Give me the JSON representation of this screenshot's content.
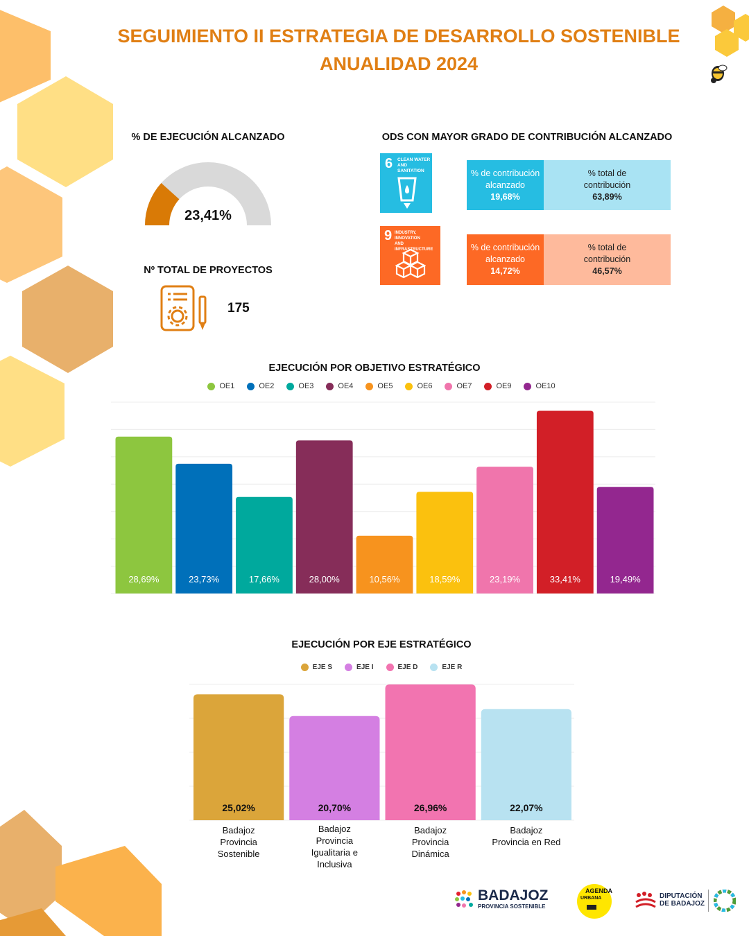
{
  "header": {
    "title_line1": "SEGUIMIENTO  II ESTRATEGIA DE DESARROLLO SOSTENIBLE",
    "title_line2": "ANUALIDAD 2024"
  },
  "execution": {
    "heading": "% DE EJECUCIÓN ALCANZADO",
    "value_label": "23,41%",
    "value": 23.41,
    "fill_color": "#D97A06",
    "track_color": "#D9D9D9"
  },
  "projects": {
    "heading": "Nº TOTAL DE PROYECTOS",
    "total": "175",
    "icon": "document-gear-icon"
  },
  "ods": {
    "heading": "ODS CON MAYOR GRADO DE CONTRIBUCIÓN ALCANZADO",
    "goals": [
      {
        "number": "6",
        "name_line1": "CLEAN WATER",
        "name_line2": "AND SANITATION",
        "icon": "water-glass-icon",
        "color": "#26BDE2",
        "light_color": "#A9E3F3",
        "achieved_label": "% de contribución alcanzado",
        "achieved_value": "19,68%",
        "total_label": "% total de contribución",
        "total_value": "63,89%"
      },
      {
        "number": "9",
        "name_line1": "INDUSTRY, INNOVATION",
        "name_line2": "AND INFRASTRUCTURE",
        "icon": "cubes-icon",
        "color": "#FD6925",
        "light_color": "#FEBA9C",
        "achieved_label": "% de contribución alcanzado",
        "achieved_value": "14,72%",
        "total_label": "% total de contribución",
        "total_value": "46,57%"
      }
    ]
  },
  "chart_data": [
    {
      "type": "bar",
      "title": "EJECUCIÓN POR OBJETIVO ESTRATÉGICO",
      "categories": [
        "OE1",
        "OE2",
        "OE3",
        "OE4",
        "OE5",
        "OE6",
        "OE7",
        "OE9",
        "OE10"
      ],
      "values": [
        28.69,
        23.73,
        17.66,
        28.0,
        10.56,
        18.59,
        23.19,
        33.41,
        19.49
      ],
      "value_labels": [
        "28,69%",
        "23,73%",
        "17,66%",
        "28,00%",
        "10,56%",
        "18,59%",
        "23,19%",
        "33,41%",
        "19,49%"
      ],
      "colors": [
        "#8DC63F",
        "#0070BA",
        "#00A99D",
        "#862D59",
        "#F7931E",
        "#FBC10E",
        "#F075AC",
        "#D21F27",
        "#93278F"
      ],
      "ylim": [
        0,
        35
      ],
      "grid": true,
      "legend_position": "top"
    },
    {
      "type": "bar",
      "title": "EJECUCIÓN POR EJE ESTRATÉGICO",
      "categories": [
        "EJE S",
        "EJE I",
        "EJE D",
        "EJE R"
      ],
      "category_names": [
        "Badajoz Provincia Sostenible",
        "Badajoz Provincia Igualitaria e Inclusiva",
        "Badajoz Provincia Dinámica",
        "Badajoz Provincia en Red"
      ],
      "values": [
        25.02,
        20.7,
        26.96,
        22.07
      ],
      "value_labels": [
        "25,02%",
        "20,70%",
        "26,96%",
        "22,07%"
      ],
      "colors": [
        "#DBA53A",
        "#D47FE2",
        "#F274B0",
        "#B8E2F1"
      ],
      "ylim": [
        0,
        27
      ],
      "grid": true,
      "legend_position": "top"
    }
  ],
  "footer": {
    "logo1_line1": "BADAJOZ",
    "logo1_line2": "PROVINCIA SOSTENIBLE",
    "logo2_line1": "AGENDA",
    "logo2_line2": "URBANA",
    "logo3_line1": "DIPUTACIÓN",
    "logo3_line2": "DE BADAJOZ"
  }
}
